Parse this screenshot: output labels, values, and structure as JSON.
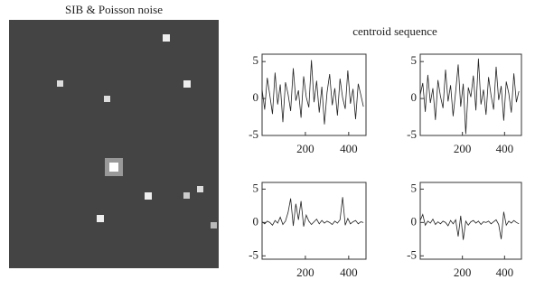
{
  "figure": {
    "left_title": "SIB & Poisson noise",
    "right_title": "centroid sequence"
  },
  "chart_data": [
    {
      "type": "line",
      "x": [
        0,
        12,
        24,
        36,
        48,
        60,
        72,
        84,
        96,
        108,
        120,
        132,
        144,
        156,
        168,
        180,
        192,
        204,
        216,
        228,
        240,
        252,
        264,
        276,
        288,
        300,
        312,
        324,
        336,
        348,
        360,
        372,
        384,
        396,
        408,
        420,
        432,
        444,
        456,
        468
      ],
      "values": [
        1.2,
        -1.5,
        2.8,
        0.4,
        -2.1,
        3.5,
        -0.8,
        1.9,
        -3.2,
        2.2,
        0.6,
        -1.7,
        4.1,
        -0.3,
        1.1,
        -2.6,
        3.0,
        0.2,
        -1.2,
        5.2,
        -0.5,
        2.4,
        -1.9,
        1.6,
        -3.5,
        0.8,
        3.3,
        -0.9,
        1.4,
        -2.3,
        2.7,
        0.1,
        -1.4,
        3.8,
        -0.7,
        1.3,
        -2.8,
        2.0,
        0.5,
        -1.1
      ],
      "color": "#222222",
      "xlim": [
        0,
        480
      ],
      "xticks": [
        200,
        400
      ],
      "ylim": [
        -5,
        6
      ],
      "yticks": [
        5,
        0,
        -5
      ]
    },
    {
      "type": "line",
      "x": [
        0,
        12,
        24,
        36,
        48,
        60,
        72,
        84,
        96,
        108,
        120,
        132,
        144,
        156,
        168,
        180,
        192,
        204,
        216,
        228,
        240,
        252,
        264,
        276,
        288,
        300,
        312,
        324,
        336,
        348,
        360,
        372,
        384,
        396,
        408,
        420,
        432,
        444,
        456,
        468
      ],
      "values": [
        0.5,
        2.1,
        -1.8,
        3.2,
        -0.6,
        1.4,
        -2.9,
        2.5,
        0.3,
        -1.3,
        3.9,
        -0.4,
        1.8,
        -2.4,
        0.9,
        4.6,
        -1.1,
        2.0,
        -4.8,
        1.5,
        0.2,
        3.1,
        -1.6,
        5.4,
        -0.8,
        1.2,
        -2.2,
        2.9,
        0.4,
        -1.5,
        4.3,
        -0.2,
        1.7,
        -3.0,
        2.3,
        0.7,
        -1.9,
        3.4,
        -0.5,
        1.0
      ],
      "color": "#222222",
      "xlim": [
        0,
        480
      ],
      "xticks": [
        200,
        400
      ],
      "ylim": [
        -5,
        6
      ],
      "yticks": [
        5,
        0,
        -5
      ]
    },
    {
      "type": "line",
      "x": [
        0,
        12,
        24,
        36,
        48,
        60,
        72,
        84,
        96,
        108,
        120,
        132,
        144,
        156,
        168,
        180,
        192,
        204,
        216,
        228,
        240,
        252,
        264,
        276,
        288,
        300,
        312,
        324,
        336,
        348,
        360,
        372,
        384,
        396,
        408,
        420,
        432,
        444,
        456,
        468
      ],
      "values": [
        0.1,
        -0.2,
        0.2,
        0.0,
        -0.4,
        0.3,
        -0.1,
        0.8,
        -0.3,
        0.2,
        1.5,
        3.6,
        -0.5,
        2.8,
        0.4,
        3.2,
        -0.6,
        1.1,
        0.2,
        -0.3,
        0.1,
        0.5,
        -0.2,
        0.3,
        -0.1,
        0.2,
        0.0,
        -0.3,
        0.2,
        -0.1,
        0.4,
        3.8,
        -0.4,
        0.6,
        -0.2,
        0.1,
        0.3,
        -0.2,
        0.1,
        0.0
      ],
      "color": "#222222",
      "xlim": [
        0,
        480
      ],
      "xticks": [
        200,
        400
      ],
      "ylim": [
        -5.5,
        6
      ],
      "yticks": [
        5,
        0,
        -5
      ]
    },
    {
      "type": "line",
      "x": [
        0,
        12,
        24,
        36,
        48,
        60,
        72,
        84,
        96,
        108,
        120,
        132,
        144,
        156,
        168,
        180,
        192,
        204,
        216,
        228,
        240,
        252,
        264,
        276,
        288,
        300,
        312,
        324,
        336,
        348,
        360,
        372,
        384,
        396,
        408,
        420,
        432,
        444,
        456,
        468
      ],
      "values": [
        0.3,
        1.2,
        -0.4,
        0.2,
        -0.1,
        0.5,
        -0.3,
        0.1,
        -0.2,
        0.2,
        0.0,
        -0.5,
        0.3,
        -0.2,
        0.4,
        -2.1,
        1.0,
        -2.6,
        0.2,
        -0.4,
        0.1,
        0.3,
        -0.1,
        0.2,
        -0.3,
        0.1,
        0.0,
        0.2,
        -0.2,
        0.1,
        0.4,
        -0.3,
        -2.5,
        1.6,
        -0.4,
        0.2,
        -0.1,
        0.3,
        0.0,
        -0.2
      ],
      "color": "#222222",
      "xlim": [
        0,
        480
      ],
      "xticks": [
        200,
        400
      ],
      "ylim": [
        -5.5,
        6
      ],
      "yticks": [
        5,
        0,
        -5
      ]
    }
  ]
}
